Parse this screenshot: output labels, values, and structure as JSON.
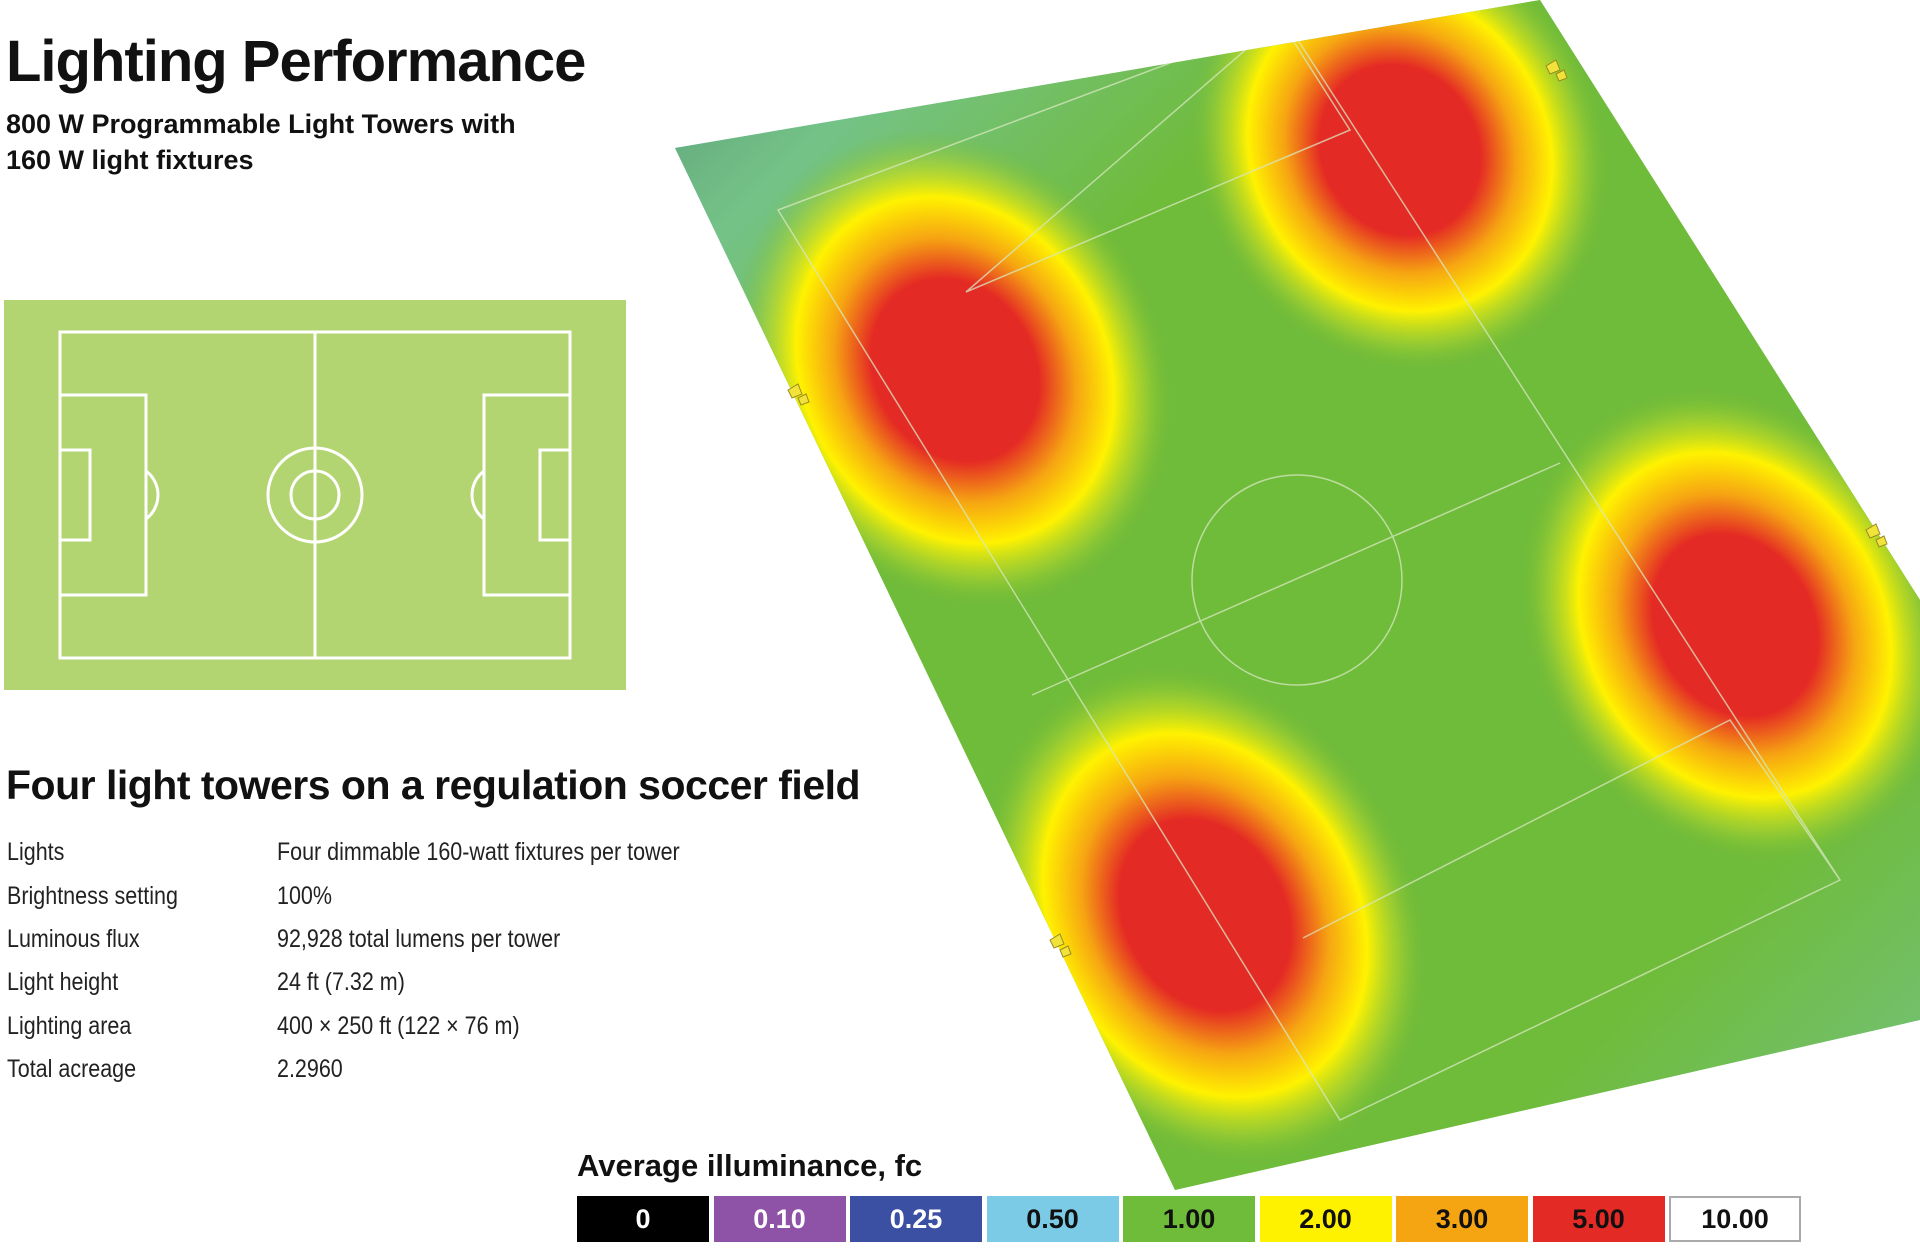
{
  "header": {
    "title": "Lighting Performance",
    "subtitle": "800 W Programmable Light Towers with 160 W light fixtures"
  },
  "field_diagram": {
    "field_color": "#b2d572",
    "line_color": "#ffffff"
  },
  "section": {
    "heading": "Four light towers on a regulation soccer field"
  },
  "specs": [
    {
      "label": "Lights",
      "value": "Four dimmable 160-watt fixtures per tower"
    },
    {
      "label": "Brightness setting",
      "value": "100%"
    },
    {
      "label": "Luminous flux",
      "value": "92,928 total lumens per tower"
    },
    {
      "label": "Light height",
      "value": "24 ft (7.32 m)"
    },
    {
      "label": "Lighting area",
      "value": "400 × 250 ft (122 × 76 m)"
    },
    {
      "label": "Total acreage",
      "value": "2.2960"
    }
  ],
  "legend": {
    "title": "Average illuminance, fc",
    "items": [
      {
        "label": "0",
        "color": "#000000",
        "text_color": "#ffffff"
      },
      {
        "label": "0.10",
        "color": "#8e52a6",
        "text_color": "#ffffff"
      },
      {
        "label": "0.25",
        "color": "#3b4fa3",
        "text_color": "#ffffff"
      },
      {
        "label": "0.50",
        "color": "#7ccbe6",
        "text_color": "#111111"
      },
      {
        "label": "1.00",
        "color": "#6fbb3a",
        "text_color": "#111111"
      },
      {
        "label": "2.00",
        "color": "#fff200",
        "text_color": "#111111"
      },
      {
        "label": "3.00",
        "color": "#f6a512",
        "text_color": "#111111"
      },
      {
        "label": "5.00",
        "color": "#e42a24",
        "text_color": "#111111"
      },
      {
        "label": "10.00",
        "color": "#ffffff",
        "text_color": "#111111"
      }
    ]
  },
  "heatmap": {
    "colors": {
      "green": "#6fbb3a",
      "yellow": "#fff200",
      "orange": "#f6a512",
      "red": "#e42a24",
      "blue": "#7ccbe6",
      "dark_blue": "#3b4fa3"
    },
    "tower_icon": "light-fixture-icon"
  }
}
